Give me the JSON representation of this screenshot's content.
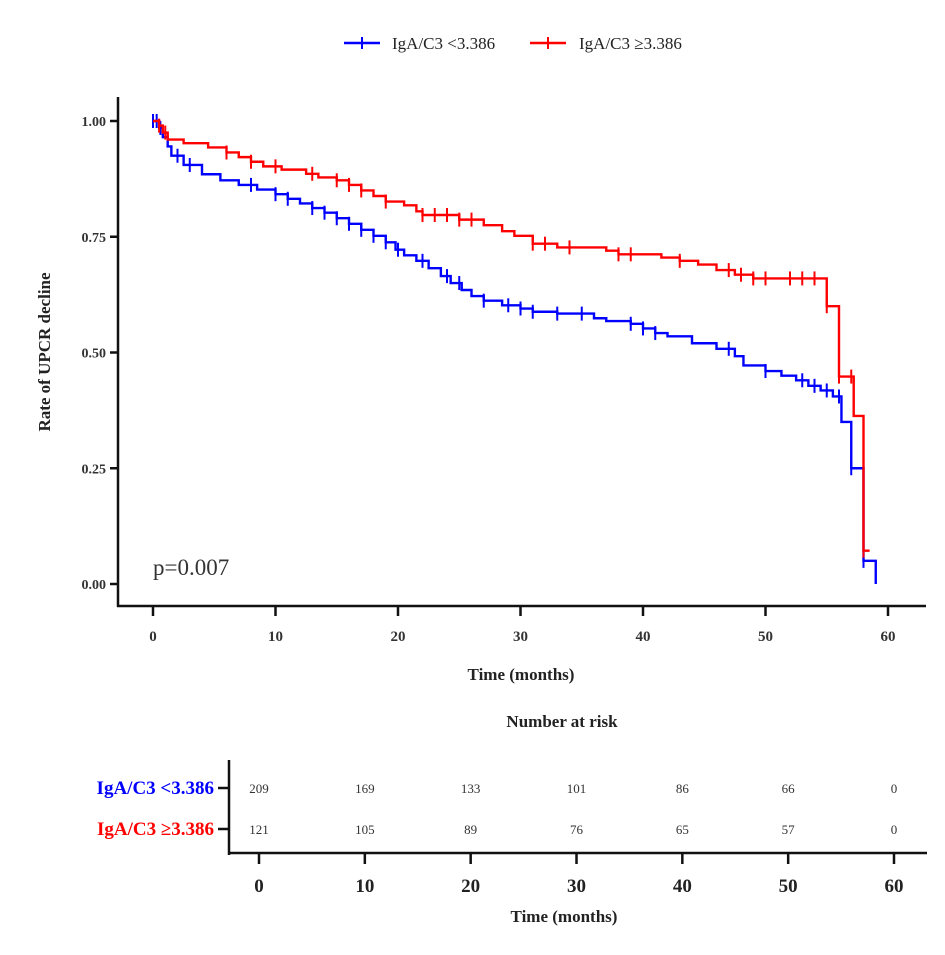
{
  "chart_data": {
    "type": "line",
    "subtype": "kaplan-meier",
    "title": "",
    "xlabel": "Time (months)",
    "ylabel": "Rate of UPCR decline",
    "xlim": [
      0,
      60
    ],
    "ylim": [
      0,
      1
    ],
    "x_ticks": [
      0,
      10,
      20,
      30,
      40,
      50,
      60
    ],
    "y_ticks": [
      0.0,
      0.25,
      0.5,
      0.75,
      1.0
    ],
    "y_tick_labels": [
      "0.00",
      "0.25",
      "0.50",
      "0.75",
      "1.00"
    ],
    "grid": false,
    "legend_position": "top-center",
    "annotation": "p=0.007",
    "series": [
      {
        "name": "IgA/C3 <3.386",
        "color": "#0000ff",
        "steps": [
          [
            0,
            1.0
          ],
          [
            0.5,
            0.985
          ],
          [
            0.8,
            0.965
          ],
          [
            1.2,
            0.945
          ],
          [
            1.5,
            0.925
          ],
          [
            2.5,
            0.905
          ],
          [
            4.0,
            0.885
          ],
          [
            5.5,
            0.872
          ],
          [
            7.0,
            0.862
          ],
          [
            8.5,
            0.852
          ],
          [
            10.0,
            0.842
          ],
          [
            11.0,
            0.832
          ],
          [
            12.0,
            0.822
          ],
          [
            13.0,
            0.812
          ],
          [
            14.0,
            0.802
          ],
          [
            15.0,
            0.79
          ],
          [
            16.0,
            0.778
          ],
          [
            17.0,
            0.765
          ],
          [
            18.0,
            0.752
          ],
          [
            19.0,
            0.738
          ],
          [
            19.8,
            0.722
          ],
          [
            20.5,
            0.71
          ],
          [
            21.5,
            0.698
          ],
          [
            22.5,
            0.682
          ],
          [
            23.5,
            0.665
          ],
          [
            24.3,
            0.65
          ],
          [
            25.2,
            0.635
          ],
          [
            26.0,
            0.622
          ],
          [
            27.0,
            0.612
          ],
          [
            28.5,
            0.602
          ],
          [
            30.0,
            0.595
          ],
          [
            31.0,
            0.588
          ],
          [
            33.0,
            0.584
          ],
          [
            36.0,
            0.574
          ],
          [
            37.0,
            0.568
          ],
          [
            39.0,
            0.562
          ],
          [
            40.0,
            0.552
          ],
          [
            41.0,
            0.542
          ],
          [
            42.0,
            0.535
          ],
          [
            44.0,
            0.52
          ],
          [
            46.0,
            0.508
          ],
          [
            47.5,
            0.492
          ],
          [
            48.2,
            0.472
          ],
          [
            50.0,
            0.46
          ],
          [
            51.3,
            0.45
          ],
          [
            52.5,
            0.44
          ],
          [
            53.5,
            0.428
          ],
          [
            54.5,
            0.418
          ],
          [
            55.5,
            0.405
          ],
          [
            56.2,
            0.35
          ],
          [
            57.0,
            0.25
          ],
          [
            58.0,
            0.05
          ],
          [
            59.0,
            0.0
          ]
        ],
        "censor_times": [
          0,
          0.3,
          0.6,
          2,
          3,
          8,
          10,
          11,
          13,
          14,
          15,
          16,
          17,
          18,
          19,
          20,
          22,
          24,
          25,
          27,
          29,
          30,
          31,
          33,
          35,
          39,
          40,
          41,
          47,
          50,
          53,
          54,
          55,
          56,
          57,
          58
        ]
      },
      {
        "name": "IgA/C3 ≥3.386",
        "color": "#ff0000",
        "steps": [
          [
            0,
            1.0
          ],
          [
            0.5,
            0.99
          ],
          [
            0.8,
            0.975
          ],
          [
            1.2,
            0.96
          ],
          [
            2.5,
            0.952
          ],
          [
            4.5,
            0.943
          ],
          [
            6.0,
            0.932
          ],
          [
            7.0,
            0.922
          ],
          [
            8.0,
            0.912
          ],
          [
            9.0,
            0.902
          ],
          [
            10.5,
            0.895
          ],
          [
            12.5,
            0.886
          ],
          [
            13.5,
            0.878
          ],
          [
            15.0,
            0.872
          ],
          [
            16.0,
            0.862
          ],
          [
            17.0,
            0.85
          ],
          [
            18.0,
            0.838
          ],
          [
            19.0,
            0.826
          ],
          [
            20.5,
            0.818
          ],
          [
            21.5,
            0.805
          ],
          [
            22.0,
            0.797
          ],
          [
            24.0,
            0.797
          ],
          [
            25.0,
            0.787
          ],
          [
            27.0,
            0.775
          ],
          [
            28.5,
            0.762
          ],
          [
            29.5,
            0.752
          ],
          [
            31.0,
            0.735
          ],
          [
            33.0,
            0.727
          ],
          [
            37.0,
            0.72
          ],
          [
            38.0,
            0.712
          ],
          [
            40.0,
            0.712
          ],
          [
            41.5,
            0.705
          ],
          [
            43.0,
            0.698
          ],
          [
            44.5,
            0.69
          ],
          [
            46.0,
            0.678
          ],
          [
            47.5,
            0.668
          ],
          [
            49.0,
            0.66
          ],
          [
            55.0,
            0.6
          ],
          [
            56.0,
            0.448
          ],
          [
            57.2,
            0.363
          ],
          [
            58.0,
            0.072
          ]
        ],
        "censor_times": [
          0.5,
          1,
          6,
          8,
          10,
          13,
          15,
          16,
          17,
          19,
          22,
          23,
          24,
          25,
          26,
          31,
          32,
          34,
          38,
          39,
          43,
          47,
          48,
          49,
          50,
          52,
          53,
          54,
          55,
          56,
          57,
          58
        ]
      }
    ],
    "risk_table": {
      "title": "Number at risk",
      "xlabel": "Time (months)",
      "times": [
        0,
        10,
        20,
        30,
        40,
        50,
        60
      ],
      "rows": [
        {
          "label": "IgA/C3 <3.386",
          "color": "#0000ff",
          "values": [
            209,
            169,
            133,
            101,
            86,
            66,
            0
          ]
        },
        {
          "label": "IgA/C3 ≥3.386",
          "color": "#ff0000",
          "values": [
            121,
            105,
            89,
            76,
            65,
            57,
            0
          ]
        }
      ]
    }
  }
}
